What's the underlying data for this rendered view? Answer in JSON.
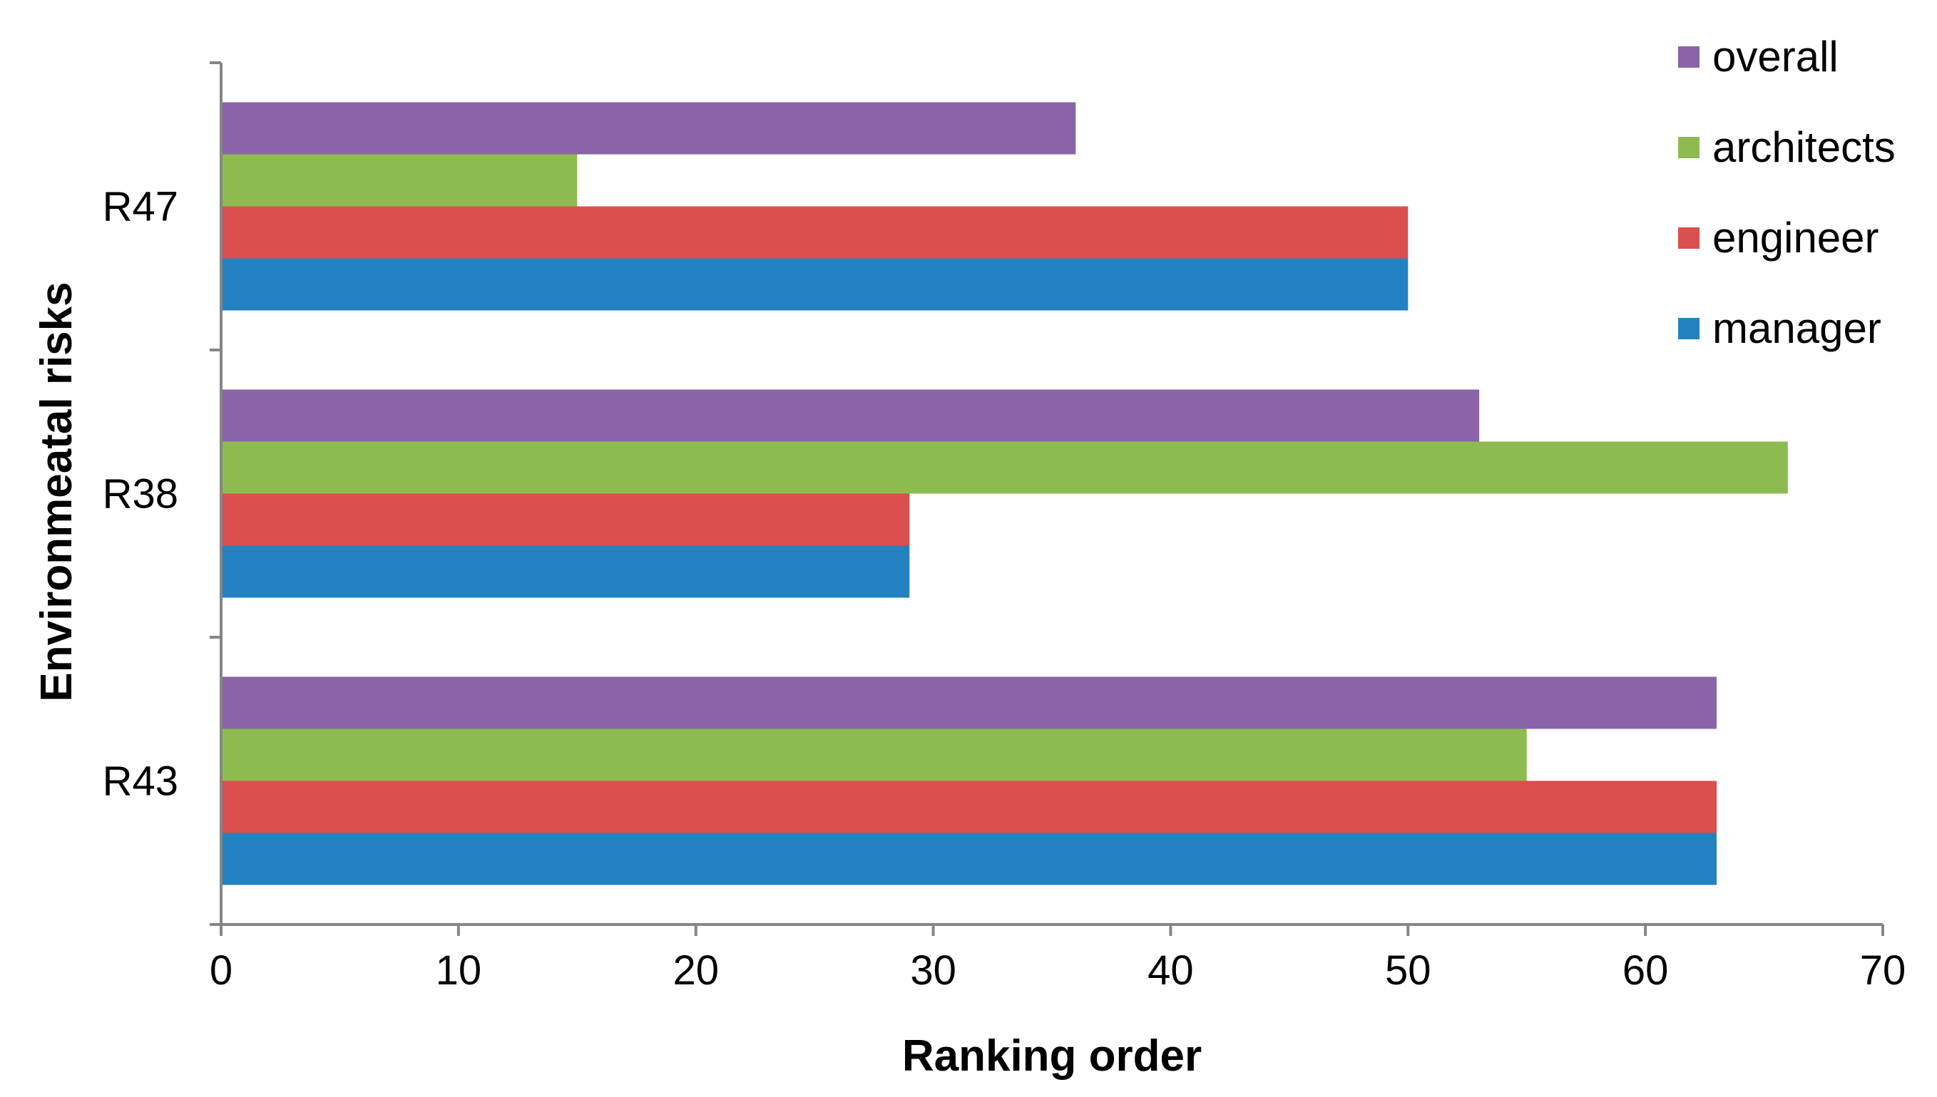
{
  "chart_data": {
    "type": "bar",
    "orientation": "horizontal",
    "title": "",
    "xlabel": "Ranking order",
    "ylabel": "Environmeatal risks",
    "xlim": [
      0,
      70
    ],
    "x_ticks": [
      "0",
      "10",
      "20",
      "30",
      "40",
      "50",
      "60",
      "70"
    ],
    "categories": [
      "R47",
      "R38",
      "R43"
    ],
    "series": [
      {
        "name": "overall",
        "color": "#8A64A6",
        "values": [
          36,
          53,
          63
        ]
      },
      {
        "name": "architects",
        "color": "#8DBB50",
        "values": [
          15,
          66,
          55
        ]
      },
      {
        "name": "engineer",
        "color": "#DB4F4E",
        "values": [
          50,
          29,
          63
        ]
      },
      {
        "name": "manager",
        "color": "#2582C0",
        "values": [
          50,
          29,
          63
        ]
      }
    ],
    "grid": false,
    "legend_position": "top-right"
  }
}
